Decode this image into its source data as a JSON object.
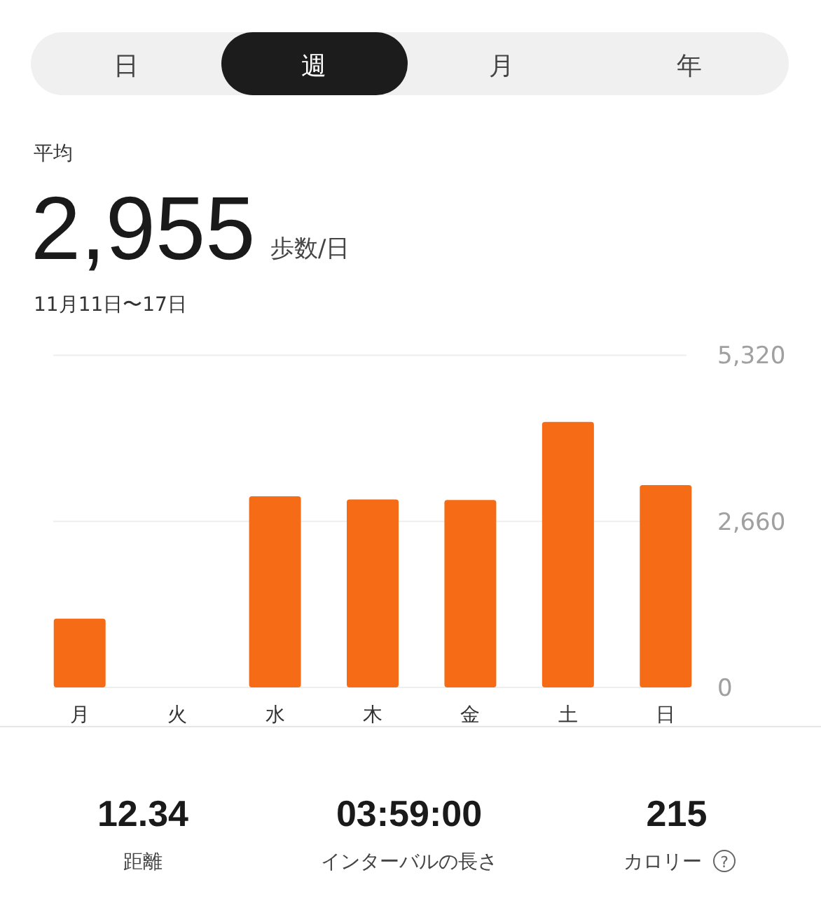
{
  "chart_data": {
    "type": "bar",
    "title": "2,955",
    "subtitle": "11月11日〜17日",
    "annotations": [
      "日",
      "週",
      "月",
      "年",
      "平均",
      "歩数/日",
      "12.34",
      "距離",
      "03:59:00",
      "インターバルの長さ",
      "215",
      "カロリー",
      "?"
    ],
    "categories": [
      "月",
      "火",
      "水",
      "木",
      "金",
      "土",
      "日"
    ],
    "values": [
      1100,
      0,
      3060,
      3010,
      3000,
      4250,
      3240
    ],
    "color": "#f56b16",
    "ylim": [
      0,
      5320
    ],
    "yticks": [
      0,
      {
        "value": 2660,
        "label": "2,660"
      },
      {
        "value": 5320,
        "label": "5,320"
      }
    ],
    "grid": "y"
  }
}
